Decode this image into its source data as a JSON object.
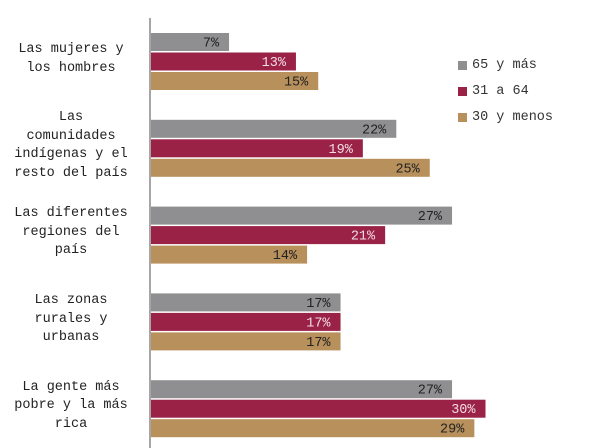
{
  "chart_data": {
    "type": "bar",
    "orientation": "horizontal",
    "categories": [
      "Las mujeres y\nlos hombres",
      "Las\ncomunidades\nindígenas y el\nresto del país",
      "Las diferentes\nregiones del\npaís",
      "Las zonas\nrurales y\nurbanas",
      "La gente más\npobre y la más\nrica"
    ],
    "series": [
      {
        "name": "65 y más",
        "color": "#8f8f91",
        "label_color": "#222222",
        "values": [
          7,
          22,
          27,
          17,
          27
        ]
      },
      {
        "name": "31 a 64",
        "color": "#9b2247",
        "label_color": "#f2dce3",
        "values": [
          13,
          19,
          21,
          17,
          30
        ]
      },
      {
        "name": "30 y menos",
        "color": "#b8905c",
        "label_color": "#222222",
        "values": [
          15,
          25,
          14,
          17,
          29
        ]
      }
    ],
    "value_suffix": "%",
    "xlim": [
      0,
      30
    ],
    "grid": false,
    "legend_position": "right"
  }
}
